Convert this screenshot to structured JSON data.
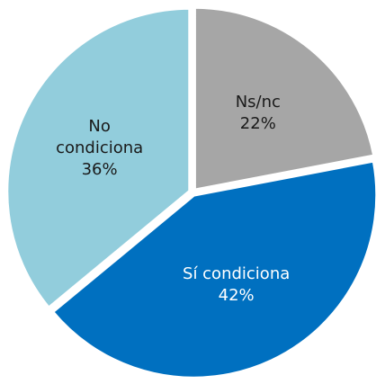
{
  "chart_data": {
    "type": "pie",
    "categories": [
      "Ns/nc",
      "Sí condiciona",
      "No condiciona"
    ],
    "values": [
      22,
      42,
      36
    ],
    "value_labels": [
      "22%",
      "42%",
      "36%"
    ],
    "colors": [
      "#a6a6a6",
      "#0070c0",
      "#92cddc"
    ],
    "label_colors": [
      "#1a1a1a",
      "#ffffff",
      "#1a1a1a"
    ]
  }
}
